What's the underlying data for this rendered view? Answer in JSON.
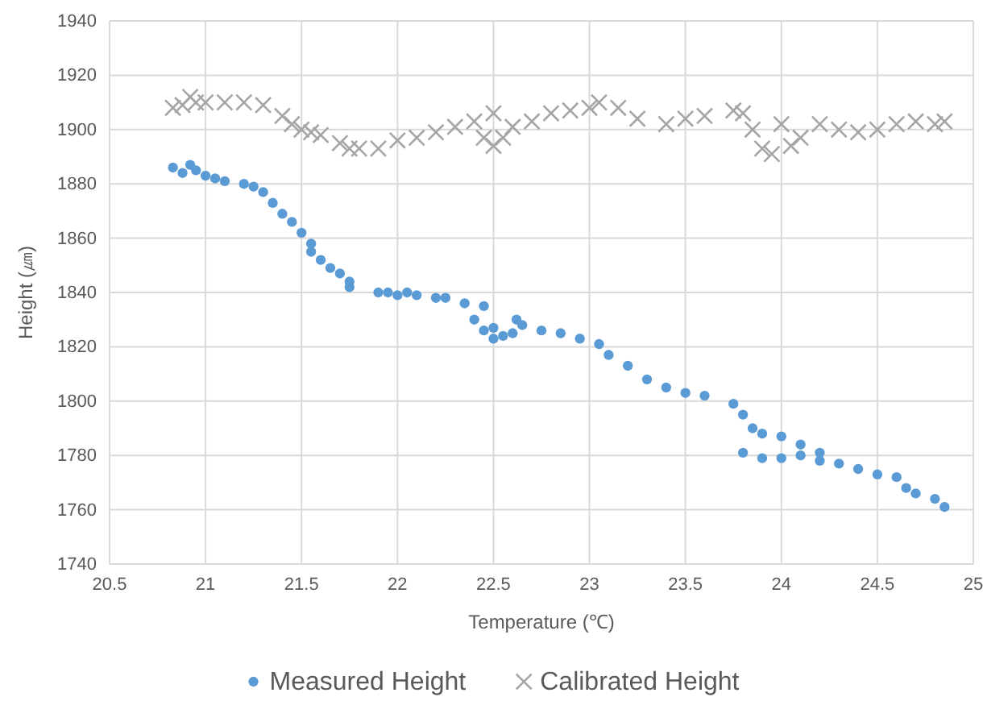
{
  "chart_data": {
    "type": "scatter",
    "xlabel": "Temperature (℃)",
    "ylabel": "Height (㎛)",
    "xlim": [
      20.5,
      25
    ],
    "xticks": [
      20.5,
      21,
      21.5,
      22,
      22.5,
      23,
      23.5,
      24,
      24.5,
      25
    ],
    "ylim": [
      1740,
      1940
    ],
    "yticks": [
      1740,
      1760,
      1780,
      1800,
      1820,
      1840,
      1860,
      1880,
      1900,
      1920,
      1940
    ],
    "grid": true,
    "legend": "bottom",
    "series": [
      {
        "name": "Measured Height",
        "color": "#5b9bd5",
        "marker": "circle",
        "x": [
          20.83,
          20.88,
          20.92,
          20.95,
          21.0,
          21.05,
          21.1,
          21.2,
          21.25,
          21.3,
          21.35,
          21.4,
          21.45,
          21.5,
          21.55,
          21.55,
          21.6,
          21.65,
          21.7,
          21.75,
          21.75,
          21.9,
          21.95,
          22.0,
          22.05,
          22.1,
          22.2,
          22.25,
          22.35,
          22.45,
          22.4,
          22.45,
          22.5,
          22.55,
          22.6,
          22.65,
          22.5,
          22.62,
          22.75,
          22.85,
          22.95,
          23.05,
          23.1,
          23.2,
          23.3,
          23.4,
          23.5,
          23.6,
          23.75,
          23.8,
          23.85,
          23.9,
          24.0,
          24.1,
          24.2,
          23.8,
          23.9,
          24.0,
          24.1,
          24.2,
          24.3,
          24.4,
          24.5,
          24.6,
          24.65,
          24.7,
          24.8,
          24.85
        ],
        "values": [
          1886,
          1884,
          1887,
          1885,
          1883,
          1882,
          1881,
          1880,
          1879,
          1877,
          1873,
          1869,
          1866,
          1862,
          1858,
          1855,
          1852,
          1849,
          1847,
          1844,
          1842,
          1840,
          1840,
          1839,
          1840,
          1839,
          1838,
          1838,
          1836,
          1835,
          1830,
          1826,
          1827,
          1824,
          1825,
          1828,
          1823,
          1830,
          1826,
          1825,
          1823,
          1821,
          1817,
          1813,
          1808,
          1805,
          1803,
          1802,
          1799,
          1795,
          1790,
          1788,
          1787,
          1784,
          1781,
          1781,
          1779,
          1779,
          1780,
          1778,
          1777,
          1775,
          1773,
          1772,
          1768,
          1766,
          1764,
          1761
        ]
      },
      {
        "name": "Calibrated Height",
        "color": "#a5a5a5",
        "marker": "cross",
        "x": [
          20.83,
          20.88,
          20.92,
          20.95,
          21.0,
          21.1,
          21.2,
          21.3,
          21.4,
          21.45,
          21.5,
          21.55,
          21.6,
          21.7,
          21.75,
          21.8,
          21.9,
          22.0,
          22.1,
          22.2,
          22.3,
          22.4,
          22.45,
          22.5,
          22.55,
          22.6,
          22.5,
          22.7,
          22.8,
          22.9,
          23.0,
          23.05,
          23.15,
          23.25,
          23.4,
          23.5,
          23.6,
          23.75,
          23.8,
          23.85,
          23.9,
          23.95,
          24.0,
          24.05,
          24.1,
          24.2,
          24.3,
          24.4,
          24.5,
          24.6,
          24.7,
          24.8,
          24.85
        ],
        "values": [
          1908,
          1909,
          1912,
          1910,
          1910,
          1910,
          1910,
          1909,
          1905,
          1902,
          1900,
          1899,
          1898,
          1895,
          1893,
          1893,
          1893,
          1896,
          1897,
          1899,
          1901,
          1903,
          1897,
          1894,
          1897,
          1901,
          1906,
          1903,
          1906,
          1907,
          1908,
          1910,
          1908,
          1904,
          1902,
          1904,
          1905,
          1907,
          1906,
          1900,
          1893,
          1891,
          1902,
          1894,
          1897,
          1902,
          1900,
          1899,
          1900,
          1902,
          1903,
          1902,
          1903
        ]
      }
    ]
  }
}
